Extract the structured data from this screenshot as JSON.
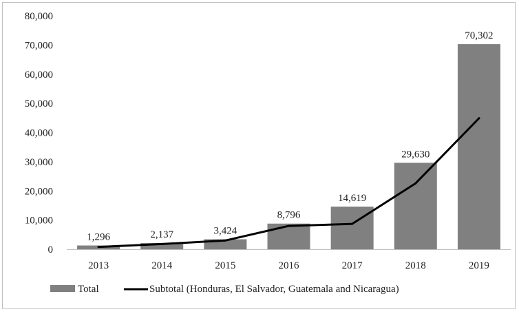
{
  "chart_data": {
    "type": "bar",
    "title": "",
    "xlabel": "",
    "ylabel": "",
    "categories": [
      "2013",
      "2014",
      "2015",
      "2016",
      "2017",
      "2018",
      "2019"
    ],
    "ylim": [
      0,
      80000
    ],
    "yticks": [
      0,
      10000,
      20000,
      30000,
      40000,
      50000,
      60000,
      70000,
      80000
    ],
    "ytick_labels": [
      "0",
      "10,000",
      "20,000",
      "30,000",
      "40,000",
      "50,000",
      "60,000",
      "70,000",
      "80,000"
    ],
    "grid": false,
    "legend_position": "bottom",
    "series": [
      {
        "name": "Total",
        "kind": "bar",
        "color": "#808080",
        "values": [
          1296,
          2137,
          3424,
          8796,
          14619,
          29630,
          70302
        ],
        "labels": [
          "1,296",
          "2,137",
          "3,424",
          "8,796",
          "14,619",
          "29,630",
          "70,302"
        ]
      },
      {
        "name": "Subtotal (Honduras, El Salvador, Guatemala and Nicaragua)",
        "kind": "line",
        "color": "#000000",
        "values": [
          800,
          1800,
          3000,
          8000,
          8700,
          22600,
          44900
        ]
      }
    ]
  }
}
